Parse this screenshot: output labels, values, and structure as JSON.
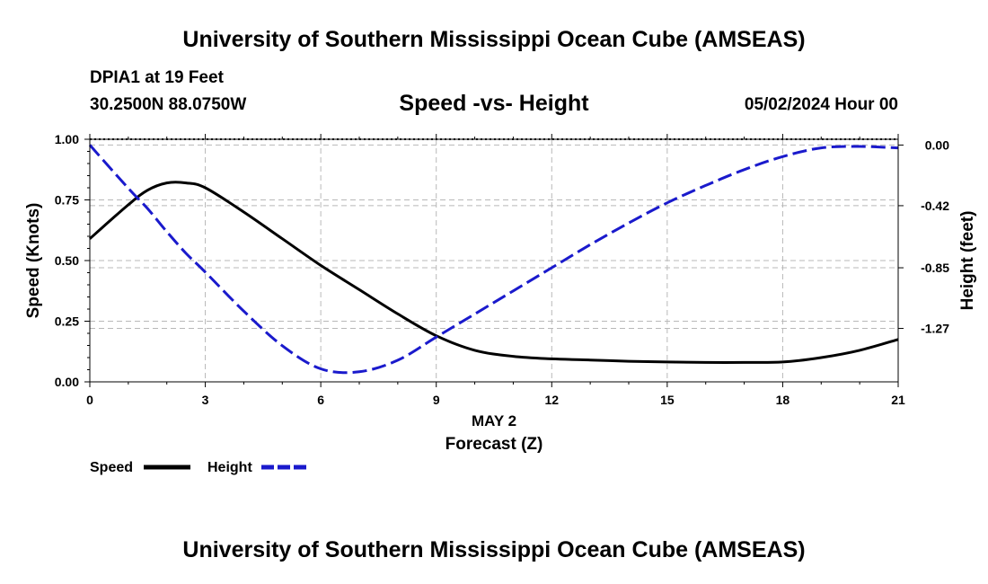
{
  "header": {
    "title": "University of Southern Mississippi Ocean Cube (AMSEAS)",
    "station": "DPIA1 at 19 Feet",
    "coords": "30.2500N  88.0750W",
    "subtitle": "Speed -vs- Height",
    "datetime": "05/02/2024 Hour 00"
  },
  "footer": {
    "title": "University of Southern Mississippi Ocean Cube (AMSEAS)"
  },
  "chart_data": {
    "type": "line",
    "title": "Speed -vs- Height",
    "xlabel_top": "MAY 2",
    "xlabel": "Forecast (Z)",
    "ylabel_left": "Speed (Knots)",
    "ylabel_right": "Height (feet)",
    "xlim": [
      0,
      21
    ],
    "ylim_left": [
      0,
      1.0
    ],
    "ylim_right": [
      -1.64,
      0.04
    ],
    "x_ticks": [
      0,
      3,
      6,
      9,
      12,
      15,
      18,
      21
    ],
    "x_tick_labels": [
      "0",
      "3",
      "6",
      "9",
      "12",
      "15",
      "18",
      "21"
    ],
    "y_left_ticks": [
      0,
      0.25,
      0.5,
      0.75,
      1.0
    ],
    "y_left_tick_labels": [
      "0.00",
      "0.25",
      "0.50",
      "0.75",
      "1.00"
    ],
    "y_right_ticks": [
      0.0,
      -0.42,
      -0.85,
      -1.27
    ],
    "y_right_tick_labels": [
      "0.00",
      "-0.42",
      "-0.85",
      "-1.27"
    ],
    "grid": true,
    "x": [
      0,
      1,
      1.5,
      2,
      2.5,
      3,
      4,
      5,
      6,
      7,
      8,
      9,
      10,
      11,
      12,
      13,
      14,
      15,
      16,
      17,
      18,
      19,
      20,
      21
    ],
    "series": [
      {
        "name": "Speed",
        "axis": "left",
        "color": "#000000",
        "dash": "solid",
        "values": [
          0.59,
          0.73,
          0.79,
          0.82,
          0.82,
          0.8,
          0.7,
          0.59,
          0.48,
          0.38,
          0.28,
          0.19,
          0.13,
          0.105,
          0.095,
          0.09,
          0.085,
          0.082,
          0.08,
          0.08,
          0.082,
          0.1,
          0.13,
          0.175
        ]
      },
      {
        "name": "Height",
        "axis": "right",
        "color": "#1a1acc",
        "dash": "dashed",
        "values": [
          0.0,
          -0.3,
          -0.44,
          -0.6,
          -0.75,
          -0.88,
          -1.15,
          -1.39,
          -1.55,
          -1.57,
          -1.49,
          -1.33,
          -1.17,
          -1.01,
          -0.85,
          -0.69,
          -0.54,
          -0.4,
          -0.28,
          -0.17,
          -0.08,
          -0.02,
          -0.01,
          -0.02
        ]
      }
    ],
    "legend": [
      "Speed",
      "Height"
    ]
  }
}
